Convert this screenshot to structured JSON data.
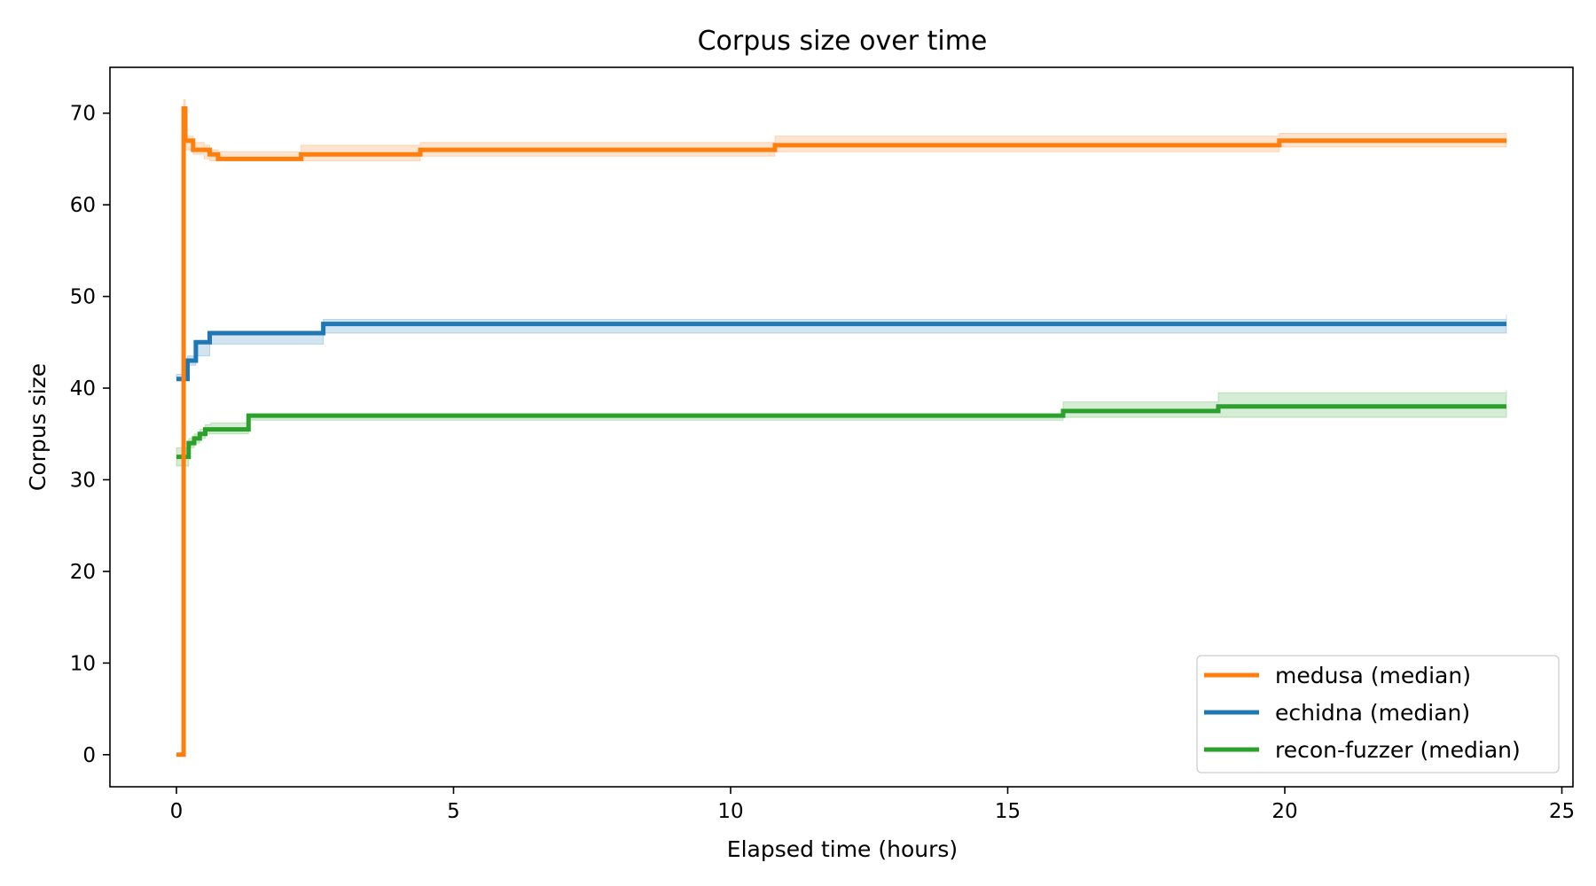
{
  "chart_data": {
    "type": "line",
    "title": "Corpus size over time",
    "xlabel": "Elapsed time (hours)",
    "ylabel": "Corpus size",
    "xlim": [
      -1.2,
      25.2
    ],
    "ylim": [
      -3.5,
      75
    ],
    "xticks": [
      0,
      5,
      10,
      15,
      20,
      25
    ],
    "yticks": [
      0,
      10,
      20,
      30,
      40,
      50,
      60,
      70
    ],
    "grid": false,
    "legend_position": "lower-right",
    "series": [
      {
        "name": "medusa (median)",
        "color": "#ff7f0e",
        "step": "post",
        "x": [
          0,
          0.1,
          0.13,
          0.16,
          0.22,
          0.3,
          0.5,
          0.6,
          0.75,
          2.25,
          4.4,
          10.8,
          19.9,
          24
        ],
        "y": [
          0,
          0,
          70.5,
          67,
          67,
          66,
          66,
          65.5,
          65,
          65.5,
          66,
          66.5,
          67,
          67
        ],
        "band_low": [
          0,
          0,
          69.5,
          66,
          66,
          65.5,
          65,
          64.8,
          64.8,
          64.8,
          65.3,
          65.8,
          66.3,
          66.3
        ],
        "band_high": [
          0,
          0,
          71.5,
          67.5,
          67.5,
          66.8,
          66.5,
          66,
          65.8,
          66.5,
          66.8,
          67.5,
          67.8,
          67.8
        ]
      },
      {
        "name": "echidna (median)",
        "color": "#1f77b4",
        "step": "post",
        "x": [
          0,
          0.2,
          0.35,
          0.6,
          2.65,
          24
        ],
        "y": [
          41,
          43,
          45,
          46,
          47,
          47
        ],
        "band_low": [
          40.8,
          42.5,
          43.5,
          44.8,
          46,
          46.6
        ],
        "band_high": [
          41.5,
          43.5,
          45.2,
          46.2,
          47.5,
          48
        ]
      },
      {
        "name": "recon-fuzzer (median)",
        "color": "#2ca02c",
        "step": "post",
        "x": [
          0,
          0.22,
          0.32,
          0.42,
          0.52,
          0.62,
          1.3,
          16,
          18.8,
          24
        ],
        "y": [
          32.5,
          34,
          34.5,
          35,
          35.5,
          35.5,
          37,
          37.5,
          38,
          38
        ],
        "band_low": [
          31.5,
          33.5,
          34,
          34.5,
          35,
          35,
          36.5,
          36.8,
          36.8,
          36.8
        ],
        "band_high": [
          33.5,
          34.5,
          35,
          35.5,
          36,
          36.2,
          37.2,
          38.5,
          39.5,
          39.8
        ]
      }
    ]
  }
}
